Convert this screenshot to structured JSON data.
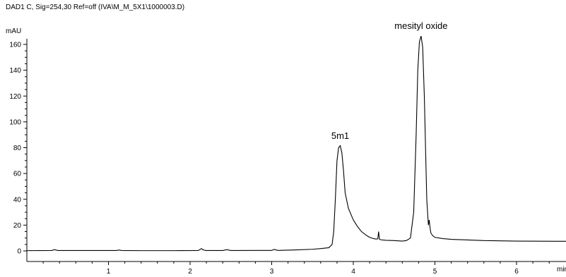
{
  "chart_data": {
    "type": "line",
    "title": "DAD1 C, Sig=254,30 Ref=off (IVA\\M_M_5X1\\1000003.D)",
    "ylabel": "mAU",
    "xlabel": "min",
    "xlim": [
      0,
      7.0
    ],
    "ylim": [
      -8,
      175
    ],
    "x_ticks": [
      1,
      2,
      3,
      4,
      5,
      6
    ],
    "x_tick_labels": [
      "1",
      "2",
      "3",
      "4",
      "5",
      "6"
    ],
    "y_ticks": [
      0,
      20,
      40,
      60,
      80,
      100,
      120,
      140,
      160
    ],
    "y_tick_labels": [
      "0",
      "20",
      "40",
      "60",
      "80",
      "100",
      "120",
      "140",
      "160"
    ],
    "grid": false,
    "annotations": [
      {
        "label": "5m1",
        "x": 3.84,
        "y": 81.5
      },
      {
        "label": "mesityl oxide",
        "x": 4.83,
        "y": 166.5
      }
    ],
    "series": [
      {
        "x": [
          0.0,
          0.3,
          0.34,
          0.38,
          0.6,
          1.0,
          1.1,
          1.13,
          1.16,
          1.4,
          1.8,
          2.1,
          2.14,
          2.16,
          2.19,
          2.4,
          2.45,
          2.47,
          2.5,
          2.8,
          3.0,
          3.03,
          3.05,
          3.08,
          3.3,
          3.5,
          3.6,
          3.7,
          3.74,
          3.76,
          3.78,
          3.8,
          3.82,
          3.84,
          3.86,
          3.88,
          3.9,
          3.94,
          4.0,
          4.05,
          4.1,
          4.15,
          4.2,
          4.25,
          4.28,
          4.3,
          4.31,
          4.32,
          4.34,
          4.4,
          4.5,
          4.6,
          4.65,
          4.7,
          4.74,
          4.77,
          4.79,
          4.81,
          4.83,
          4.85,
          4.87,
          4.9,
          4.92,
          4.93,
          4.94,
          4.95,
          4.97,
          5.0,
          5.1,
          5.2,
          5.4,
          5.6,
          5.8,
          6.0,
          6.5,
          7.0
        ],
        "y": [
          0.2,
          0.3,
          1.0,
          0.3,
          0.3,
          0.3,
          0.3,
          0.7,
          0.3,
          0.2,
          0.2,
          0.3,
          1.8,
          0.8,
          0.3,
          0.3,
          1.0,
          0.7,
          0.3,
          0.4,
          0.4,
          1.2,
          0.8,
          0.4,
          0.8,
          1.3,
          1.8,
          2.5,
          5,
          15,
          40,
          70,
          80,
          81.5,
          76,
          62,
          45,
          33,
          24,
          19,
          15,
          12.5,
          10.5,
          9.5,
          9.2,
          9.4,
          15,
          9.0,
          8.6,
          8.2,
          8.0,
          7.6,
          8,
          10,
          30,
          90,
          140,
          162,
          166.5,
          158,
          120,
          40,
          20,
          24,
          18,
          14,
          12,
          10.5,
          9.5,
          9.0,
          8.5,
          8.0,
          7.8,
          7.6,
          7.5,
          7.4
        ]
      }
    ]
  }
}
